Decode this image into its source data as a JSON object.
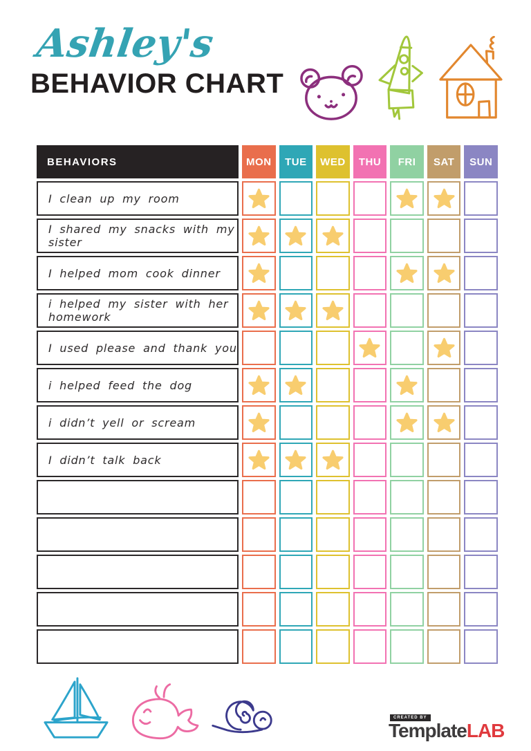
{
  "page": {
    "title_script": "Ashley's",
    "title_main": "BEHAVIOR CHART"
  },
  "colors": {
    "accent_teal": "#35a3b3",
    "ink": "#221e1f",
    "bear": "#8c2f7d",
    "rocket": "#a2c73b",
    "house": "#e2872e",
    "boat": "#2ca4cb",
    "whale": "#ec6ba3",
    "snail": "#3c3a8d",
    "star": "#f8cd6f",
    "logo_dark": "#3d3b3c",
    "logo_red": "#e03a3e"
  },
  "header_icons": [
    "bear-icon",
    "rocket-icon",
    "house-icon"
  ],
  "footer_icons": [
    "sailboat-icon",
    "whale-icon",
    "snail-icon"
  ],
  "chart": {
    "behaviors_header": "BEHAVIORS",
    "days": [
      {
        "label": "MON",
        "color": "#e96e4c"
      },
      {
        "label": "TUE",
        "color": "#2fa7b6"
      },
      {
        "label": "WED",
        "color": "#dec12f"
      },
      {
        "label": "THU",
        "color": "#f272b2"
      },
      {
        "label": "FRI",
        "color": "#90d1a2"
      },
      {
        "label": "SAT",
        "color": "#c19d6b"
      },
      {
        "label": "SUN",
        "color": "#8b86c3"
      }
    ],
    "rows": [
      {
        "behavior": "I clean up my room",
        "stars": [
          1,
          0,
          0,
          0,
          1,
          1,
          0
        ]
      },
      {
        "behavior": "I shared my snacks with my sister",
        "stars": [
          1,
          1,
          1,
          0,
          0,
          0,
          0
        ]
      },
      {
        "behavior": "I helped mom cook dinner",
        "stars": [
          1,
          0,
          0,
          0,
          1,
          1,
          0
        ]
      },
      {
        "behavior": "i helped my sister with her homework",
        "stars": [
          1,
          1,
          1,
          0,
          0,
          0,
          0
        ]
      },
      {
        "behavior": "I used please and thank you",
        "stars": [
          0,
          0,
          0,
          1,
          0,
          1,
          0
        ]
      },
      {
        "behavior": "i helped feed the dog",
        "stars": [
          1,
          1,
          0,
          0,
          1,
          0,
          0
        ]
      },
      {
        "behavior": "i didn’t yell or scream",
        "stars": [
          1,
          0,
          0,
          0,
          1,
          1,
          0
        ]
      },
      {
        "behavior": "I didn’t talk back",
        "stars": [
          1,
          1,
          1,
          0,
          0,
          0,
          0
        ]
      },
      {
        "behavior": "",
        "stars": [
          0,
          0,
          0,
          0,
          0,
          0,
          0
        ]
      },
      {
        "behavior": "",
        "stars": [
          0,
          0,
          0,
          0,
          0,
          0,
          0
        ]
      },
      {
        "behavior": "",
        "stars": [
          0,
          0,
          0,
          0,
          0,
          0,
          0
        ]
      },
      {
        "behavior": "",
        "stars": [
          0,
          0,
          0,
          0,
          0,
          0,
          0
        ]
      },
      {
        "behavior": "",
        "stars": [
          0,
          0,
          0,
          0,
          0,
          0,
          0
        ]
      }
    ]
  },
  "footer": {
    "logo": {
      "created_by": "CREATED BY",
      "brand_dark": "Template",
      "brand_red": "LAB"
    }
  }
}
